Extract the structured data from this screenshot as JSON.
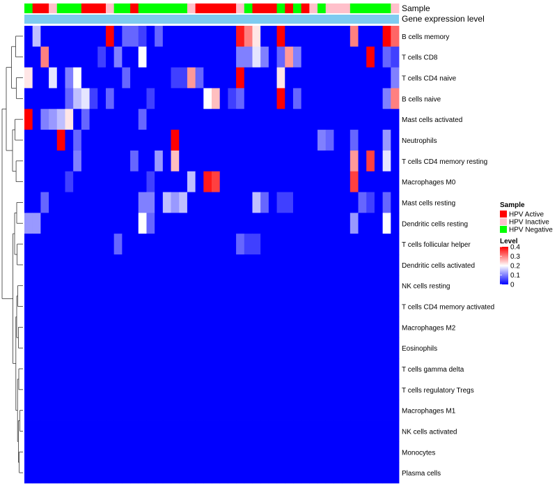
{
  "chart_data": {
    "type": "heatmap",
    "annotation_labels": {
      "sample": "Sample",
      "expression": "Gene expression level"
    },
    "sample_groups": [
      "HPV Negative",
      "HPV Active",
      "HPV Active",
      "HPV Inactive",
      "HPV Negative",
      "HPV Negative",
      "HPV Negative",
      "HPV Active",
      "HPV Active",
      "HPV Active",
      "HPV Inactive",
      "HPV Negative",
      "HPV Negative",
      "HPV Active",
      "HPV Negative",
      "HPV Negative",
      "HPV Negative",
      "HPV Negative",
      "HPV Negative",
      "HPV Negative",
      "HPV Inactive",
      "HPV Active",
      "HPV Active",
      "HPV Active",
      "HPV Active",
      "HPV Active",
      "HPV Inactive",
      "HPV Negative",
      "HPV Active",
      "HPV Active",
      "HPV Active",
      "HPV Negative",
      "HPV Active",
      "HPV Negative",
      "HPV Active",
      "HPV Inactive",
      "HPV Negative",
      "HPV Inactive",
      "HPV Inactive",
      "HPV Inactive",
      "HPV Negative",
      "HPV Negative",
      "HPV Negative",
      "HPV Negative",
      "HPV Negative",
      "HPV Inactive"
    ],
    "group_colors": {
      "HPV Active": "#ff0000",
      "HPV Inactive": "#ffc0cb",
      "HPV Negative": "#00ff00"
    },
    "expression_bar_color": "#7ecbf0",
    "rows": [
      "B cells memory",
      "T cells CD8",
      "T cells CD4 naive",
      "B cells naive",
      "Mast cells activated",
      "Neutrophils",
      "T cells CD4 memory resting",
      "Macrophages M0",
      "Mast cells resting",
      "Dendritic cells resting",
      "T cells follicular helper",
      "Dendritic cells activated",
      "NK cells resting",
      "T cells CD4 memory activated",
      "Macrophages M2",
      "Eosinophils",
      "T cells gamma delta",
      "T cells regulatory  Tregs",
      "Macrophages M1",
      "NK cells activated",
      "Monocytes",
      "Plasma cells"
    ],
    "values": [
      [
        0.0,
        0.15,
        0.0,
        0.0,
        0.0,
        0.0,
        0.0,
        0.0,
        0.0,
        0.0,
        0.4,
        0.0,
        0.08,
        0.08,
        0.05,
        0.0,
        0.08,
        0.0,
        0.0,
        0.0,
        0.0,
        0.0,
        0.0,
        0.0,
        0.0,
        0.0,
        0.38,
        0.3,
        0.22,
        0.0,
        0.0,
        0.4,
        0.0,
        0.0,
        0.0,
        0.0,
        0.0,
        0.0,
        0.0,
        0.0,
        0.3,
        0.0,
        0.0,
        0.0,
        0.4,
        0.32
      ],
      [
        0.0,
        0.0,
        0.3,
        0.0,
        0.0,
        0.0,
        0.0,
        0.0,
        0.0,
        0.05,
        0.0,
        0.1,
        0.0,
        0.0,
        0.2,
        0.0,
        0.0,
        0.0,
        0.0,
        0.0,
        0.0,
        0.0,
        0.0,
        0.0,
        0.0,
        0.0,
        0.1,
        0.1,
        0.18,
        0.1,
        0.0,
        0.08,
        0.28,
        0.1,
        0.0,
        0.0,
        0.0,
        0.0,
        0.0,
        0.0,
        0.0,
        0.0,
        0.4,
        0.0,
        0.08,
        0.05
      ],
      [
        0.22,
        0.0,
        0.0,
        0.18,
        0.0,
        0.1,
        0.2,
        0.0,
        0.0,
        0.0,
        0.0,
        0.0,
        0.08,
        0.0,
        0.0,
        0.0,
        0.0,
        0.0,
        0.05,
        0.05,
        0.28,
        0.08,
        0.0,
        0.0,
        0.0,
        0.0,
        0.4,
        0.0,
        0.0,
        0.0,
        0.0,
        0.22,
        0.0,
        0.0,
        0.0,
        0.0,
        0.0,
        0.0,
        0.0,
        0.0,
        0.0,
        0.0,
        0.0,
        0.0,
        0.0,
        0.1
      ],
      [
        0.0,
        0.0,
        0.0,
        0.0,
        0.0,
        0.08,
        0.15,
        0.18,
        0.05,
        0.0,
        0.08,
        0.0,
        0.0,
        0.0,
        0.0,
        0.05,
        0.0,
        0.0,
        0.0,
        0.0,
        0.0,
        0.0,
        0.2,
        0.25,
        0.0,
        0.05,
        0.08,
        0.0,
        0.0,
        0.0,
        0.0,
        0.4,
        0.0,
        0.08,
        0.0,
        0.0,
        0.0,
        0.0,
        0.0,
        0.0,
        0.0,
        0.0,
        0.0,
        0.0,
        0.1,
        0.3
      ],
      [
        0.4,
        0.0,
        0.1,
        0.12,
        0.15,
        0.22,
        0.0,
        0.08,
        0.0,
        0.0,
        0.0,
        0.0,
        0.0,
        0.0,
        0.08,
        0.0,
        0.0,
        0.0,
        0.0,
        0.0,
        0.0,
        0.0,
        0.0,
        0.0,
        0.0,
        0.0,
        0.0,
        0.0,
        0.0,
        0.0,
        0.0,
        0.0,
        0.0,
        0.0,
        0.0,
        0.0,
        0.0,
        0.0,
        0.0,
        0.0,
        0.0,
        0.0,
        0.0,
        0.0,
        0.0,
        0.0
      ],
      [
        0.0,
        0.0,
        0.0,
        0.0,
        0.4,
        0.0,
        0.08,
        0.0,
        0.0,
        0.0,
        0.0,
        0.0,
        0.0,
        0.0,
        0.0,
        0.0,
        0.0,
        0.0,
        0.4,
        0.0,
        0.0,
        0.0,
        0.0,
        0.0,
        0.0,
        0.0,
        0.0,
        0.0,
        0.0,
        0.0,
        0.0,
        0.0,
        0.0,
        0.0,
        0.0,
        0.0,
        0.1,
        0.08,
        0.0,
        0.0,
        0.08,
        0.0,
        0.0,
        0.0,
        0.12,
        0.0
      ],
      [
        0.0,
        0.0,
        0.0,
        0.0,
        0.0,
        0.0,
        0.1,
        0.0,
        0.0,
        0.0,
        0.0,
        0.0,
        0.0,
        0.08,
        0.0,
        0.0,
        0.12,
        0.0,
        0.25,
        0.0,
        0.0,
        0.0,
        0.0,
        0.0,
        0.0,
        0.0,
        0.0,
        0.0,
        0.0,
        0.0,
        0.0,
        0.0,
        0.0,
        0.0,
        0.0,
        0.0,
        0.0,
        0.0,
        0.0,
        0.0,
        0.28,
        0.0,
        0.35,
        0.0,
        0.18,
        0.0
      ],
      [
        0.0,
        0.0,
        0.0,
        0.0,
        0.0,
        0.05,
        0.0,
        0.0,
        0.0,
        0.0,
        0.0,
        0.0,
        0.0,
        0.0,
        0.0,
        0.05,
        0.0,
        0.0,
        0.0,
        0.0,
        0.15,
        0.0,
        0.38,
        0.35,
        0.0,
        0.0,
        0.0,
        0.0,
        0.0,
        0.0,
        0.0,
        0.0,
        0.0,
        0.0,
        0.0,
        0.0,
        0.0,
        0.0,
        0.0,
        0.0,
        0.35,
        0.0,
        0.0,
        0.0,
        0.0,
        0.0
      ],
      [
        0.0,
        0.0,
        0.08,
        0.0,
        0.0,
        0.0,
        0.0,
        0.0,
        0.0,
        0.0,
        0.0,
        0.0,
        0.0,
        0.0,
        0.1,
        0.1,
        0.0,
        0.15,
        0.12,
        0.15,
        0.0,
        0.0,
        0.0,
        0.0,
        0.0,
        0.0,
        0.0,
        0.0,
        0.15,
        0.08,
        0.0,
        0.05,
        0.05,
        0.0,
        0.0,
        0.0,
        0.0,
        0.0,
        0.0,
        0.0,
        0.0,
        0.08,
        0.05,
        0.0,
        0.08,
        0.0
      ],
      [
        0.12,
        0.12,
        0.0,
        0.0,
        0.0,
        0.0,
        0.0,
        0.0,
        0.0,
        0.0,
        0.0,
        0.0,
        0.0,
        0.0,
        0.2,
        0.08,
        0.0,
        0.0,
        0.0,
        0.0,
        0.0,
        0.0,
        0.0,
        0.0,
        0.0,
        0.0,
        0.0,
        0.0,
        0.0,
        0.0,
        0.0,
        0.0,
        0.0,
        0.0,
        0.0,
        0.0,
        0.0,
        0.0,
        0.0,
        0.0,
        0.12,
        0.0,
        0.0,
        0.0,
        0.2,
        0.0
      ],
      [
        0.0,
        0.0,
        0.0,
        0.0,
        0.0,
        0.0,
        0.0,
        0.0,
        0.0,
        0.0,
        0.0,
        0.08,
        0.0,
        0.0,
        0.0,
        0.0,
        0.0,
        0.0,
        0.0,
        0.0,
        0.0,
        0.0,
        0.0,
        0.0,
        0.0,
        0.0,
        0.08,
        0.05,
        0.05,
        0.0,
        0.0,
        0.0,
        0.0,
        0.0,
        0.0,
        0.0,
        0.0,
        0.0,
        0.0,
        0.0,
        0.0,
        0.0,
        0.0,
        0.0,
        0.0,
        0.0
      ],
      [
        0.0,
        0.0,
        0.0,
        0.0,
        0.0,
        0.0,
        0.0,
        0.0,
        0.0,
        0.0,
        0.0,
        0.0,
        0.0,
        0.0,
        0.0,
        0.0,
        0.0,
        0.0,
        0.0,
        0.0,
        0.0,
        0.0,
        0.0,
        0.0,
        0.0,
        0.0,
        0.0,
        0.0,
        0.0,
        0.0,
        0.0,
        0.0,
        0.0,
        0.0,
        0.0,
        0.0,
        0.0,
        0.0,
        0.0,
        0.0,
        0.0,
        0.0,
        0.0,
        0.0,
        0.0,
        0.0
      ],
      [
        0.0,
        0.0,
        0.0,
        0.0,
        0.0,
        0.0,
        0.0,
        0.0,
        0.0,
        0.0,
        0.0,
        0.0,
        0.0,
        0.0,
        0.0,
        0.0,
        0.0,
        0.0,
        0.0,
        0.0,
        0.0,
        0.0,
        0.0,
        0.0,
        0.0,
        0.0,
        0.0,
        0.0,
        0.0,
        0.0,
        0.0,
        0.0,
        0.0,
        0.0,
        0.0,
        0.0,
        0.0,
        0.0,
        0.0,
        0.0,
        0.0,
        0.0,
        0.0,
        0.0,
        0.0,
        0.0
      ],
      [
        0.0,
        0.0,
        0.0,
        0.0,
        0.0,
        0.0,
        0.0,
        0.0,
        0.0,
        0.0,
        0.0,
        0.0,
        0.0,
        0.0,
        0.0,
        0.0,
        0.0,
        0.0,
        0.0,
        0.0,
        0.0,
        0.0,
        0.0,
        0.0,
        0.0,
        0.0,
        0.0,
        0.0,
        0.0,
        0.0,
        0.0,
        0.0,
        0.0,
        0.0,
        0.0,
        0.0,
        0.0,
        0.0,
        0.0,
        0.0,
        0.0,
        0.0,
        0.0,
        0.0,
        0.0,
        0.0
      ],
      [
        0.0,
        0.0,
        0.0,
        0.0,
        0.0,
        0.0,
        0.0,
        0.0,
        0.0,
        0.0,
        0.0,
        0.0,
        0.0,
        0.0,
        0.0,
        0.0,
        0.0,
        0.0,
        0.0,
        0.0,
        0.0,
        0.0,
        0.0,
        0.0,
        0.0,
        0.0,
        0.0,
        0.0,
        0.0,
        0.0,
        0.0,
        0.0,
        0.0,
        0.0,
        0.0,
        0.0,
        0.0,
        0.0,
        0.0,
        0.0,
        0.0,
        0.0,
        0.0,
        0.0,
        0.0,
        0.0
      ],
      [
        0.0,
        0.0,
        0.0,
        0.0,
        0.0,
        0.0,
        0.0,
        0.0,
        0.0,
        0.0,
        0.0,
        0.0,
        0.0,
        0.0,
        0.0,
        0.0,
        0.0,
        0.0,
        0.0,
        0.0,
        0.0,
        0.0,
        0.0,
        0.0,
        0.0,
        0.0,
        0.0,
        0.0,
        0.0,
        0.0,
        0.0,
        0.0,
        0.0,
        0.0,
        0.0,
        0.0,
        0.0,
        0.0,
        0.0,
        0.0,
        0.0,
        0.0,
        0.0,
        0.0,
        0.0,
        0.0
      ],
      [
        0.0,
        0.0,
        0.0,
        0.0,
        0.0,
        0.0,
        0.0,
        0.0,
        0.0,
        0.0,
        0.0,
        0.0,
        0.0,
        0.0,
        0.0,
        0.0,
        0.0,
        0.0,
        0.0,
        0.0,
        0.0,
        0.0,
        0.0,
        0.0,
        0.0,
        0.0,
        0.0,
        0.0,
        0.0,
        0.0,
        0.0,
        0.0,
        0.0,
        0.0,
        0.0,
        0.0,
        0.0,
        0.0,
        0.0,
        0.0,
        0.0,
        0.0,
        0.0,
        0.0,
        0.0,
        0.0
      ],
      [
        0.0,
        0.0,
        0.0,
        0.0,
        0.0,
        0.0,
        0.0,
        0.0,
        0.0,
        0.0,
        0.0,
        0.0,
        0.0,
        0.0,
        0.0,
        0.0,
        0.0,
        0.0,
        0.0,
        0.0,
        0.0,
        0.0,
        0.0,
        0.0,
        0.0,
        0.0,
        0.0,
        0.0,
        0.0,
        0.0,
        0.0,
        0.0,
        0.0,
        0.0,
        0.0,
        0.0,
        0.0,
        0.0,
        0.0,
        0.0,
        0.0,
        0.0,
        0.0,
        0.0,
        0.0,
        0.0
      ],
      [
        0.0,
        0.0,
        0.0,
        0.0,
        0.0,
        0.0,
        0.0,
        0.0,
        0.0,
        0.0,
        0.0,
        0.0,
        0.0,
        0.0,
        0.0,
        0.0,
        0.0,
        0.0,
        0.0,
        0.0,
        0.0,
        0.0,
        0.0,
        0.0,
        0.0,
        0.0,
        0.0,
        0.0,
        0.0,
        0.0,
        0.0,
        0.0,
        0.0,
        0.0,
        0.0,
        0.0,
        0.0,
        0.0,
        0.0,
        0.0,
        0.0,
        0.0,
        0.0,
        0.0,
        0.0,
        0.0
      ],
      [
        0.0,
        0.0,
        0.0,
        0.0,
        0.0,
        0.0,
        0.0,
        0.0,
        0.0,
        0.0,
        0.0,
        0.0,
        0.0,
        0.0,
        0.0,
        0.0,
        0.0,
        0.0,
        0.0,
        0.0,
        0.0,
        0.0,
        0.0,
        0.0,
        0.0,
        0.0,
        0.0,
        0.0,
        0.0,
        0.0,
        0.0,
        0.0,
        0.0,
        0.0,
        0.0,
        0.0,
        0.0,
        0.0,
        0.0,
        0.0,
        0.0,
        0.0,
        0.0,
        0.0,
        0.0,
        0.0
      ],
      [
        0.0,
        0.0,
        0.0,
        0.0,
        0.0,
        0.0,
        0.0,
        0.0,
        0.0,
        0.0,
        0.0,
        0.0,
        0.0,
        0.0,
        0.0,
        0.0,
        0.0,
        0.0,
        0.0,
        0.0,
        0.0,
        0.0,
        0.0,
        0.0,
        0.0,
        0.0,
        0.0,
        0.0,
        0.0,
        0.0,
        0.0,
        0.0,
        0.0,
        0.0,
        0.0,
        0.0,
        0.0,
        0.0,
        0.0,
        0.0,
        0.0,
        0.0,
        0.0,
        0.0,
        0.0,
        0.0
      ],
      [
        0.0,
        0.0,
        0.0,
        0.0,
        0.0,
        0.0,
        0.0,
        0.0,
        0.0,
        0.0,
        0.0,
        0.0,
        0.0,
        0.0,
        0.0,
        0.0,
        0.0,
        0.0,
        0.0,
        0.0,
        0.0,
        0.0,
        0.0,
        0.0,
        0.0,
        0.0,
        0.0,
        0.0,
        0.0,
        0.0,
        0.0,
        0.0,
        0.0,
        0.0,
        0.0,
        0.0,
        0.0,
        0.0,
        0.0,
        0.0,
        0.0,
        0.0,
        0.0,
        0.0,
        0.0,
        0.0
      ]
    ],
    "color_scale": {
      "min": 0,
      "max": 0.4,
      "stops": [
        {
          "value": 0,
          "color": "#0000ff"
        },
        {
          "value": 0.2,
          "color": "#ffffff"
        },
        {
          "value": 0.4,
          "color": "#ff0000"
        }
      ]
    },
    "legend": {
      "sample_title": "Sample",
      "sample_entries": [
        "HPV Active",
        "HPV Inactive",
        "HPV Negative"
      ],
      "level_title": "Level",
      "level_ticks": [
        "0.4",
        "0.3",
        "0.2",
        "0.1",
        "0"
      ],
      "placement": "right"
    }
  }
}
